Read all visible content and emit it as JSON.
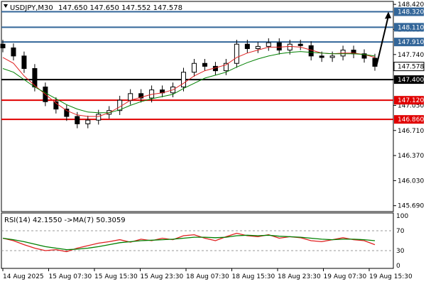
{
  "header": {
    "symbol_tf": "USDJPY,M30",
    "ohlc": "147.650 147.650 147.552 147.578",
    "rsi_label": "RSI(14) 42.1550 ->MA(7) 50.3059"
  },
  "chart_data": {
    "type": "line",
    "title": "",
    "xlabel": "",
    "ylabel": "",
    "price_axis": {
      "ylim": [
        145.61,
        148.46
      ],
      "ticks": [
        "148.420",
        "148.080",
        "147.740",
        "147.400",
        "147.050",
        "146.710",
        "146.370",
        "146.030",
        "145.690"
      ]
    },
    "time_axis": {
      "ticks": [
        "14 Aug 2025",
        "15 Aug 07:30",
        "15 Aug 15:30",
        "15 Aug 23:30",
        "18 Aug 07:30",
        "18 Aug 15:30",
        "18 Aug 23:30",
        "19 Aug 07:30",
        "19 Aug 15:30"
      ]
    },
    "levels": [
      {
        "value": "148.320",
        "color": "#336699"
      },
      {
        "value": "148.110",
        "color": "#336699"
      },
      {
        "value": "147.910",
        "color": "#336699"
      },
      {
        "value": "147.400",
        "color": "#000000"
      },
      {
        "value": "147.120",
        "color": "#e00000"
      },
      {
        "value": "146.860",
        "color": "#e00000"
      }
    ],
    "current_price": "147.578",
    "projection": {
      "from": 147.578,
      "to": 148.32
    },
    "price_series": [
      {
        "name": "close",
        "values": [
          147.83,
          147.72,
          147.55,
          147.3,
          147.1,
          147.0,
          146.9,
          146.8,
          146.85,
          146.93,
          146.98,
          147.12,
          147.21,
          147.15,
          147.26,
          147.22,
          147.3,
          147.5,
          147.62,
          147.58,
          147.52,
          147.62,
          147.88,
          147.82,
          147.85,
          147.9,
          147.8,
          147.88,
          147.86,
          147.72,
          147.7,
          147.72,
          147.8,
          147.75,
          147.69,
          147.58
        ]
      },
      {
        "name": "",
        "color": "#e02020",
        "values": [
          147.7,
          147.62,
          147.45,
          147.32,
          147.2,
          147.08,
          146.98,
          146.92,
          146.9,
          146.9,
          146.95,
          147.03,
          147.12,
          147.16,
          147.2,
          147.22,
          147.26,
          147.35,
          147.45,
          147.52,
          147.56,
          147.6,
          147.7,
          147.76,
          147.8,
          147.84,
          147.84,
          147.85,
          147.84,
          147.8,
          147.76,
          147.75,
          147.76,
          147.76,
          147.74,
          147.7
        ]
      },
      {
        "name": "",
        "color": "#008000",
        "values": [
          147.55,
          147.5,
          147.4,
          147.3,
          147.22,
          147.14,
          147.06,
          147.0,
          146.96,
          146.95,
          146.95,
          146.99,
          147.05,
          147.1,
          147.14,
          147.17,
          147.2,
          147.28,
          147.35,
          147.42,
          147.46,
          147.5,
          147.57,
          147.63,
          147.68,
          147.72,
          147.75,
          147.77,
          147.78,
          147.77,
          147.76,
          147.75,
          147.75,
          147.75,
          147.74,
          147.72
        ]
      }
    ],
    "rsi": {
      "levels": [
        70,
        30
      ],
      "ticks": [
        "100",
        "70",
        "30",
        "0"
      ],
      "series": [
        {
          "name": "",
          "color": "#e02020",
          "values": [
            55,
            50,
            42,
            35,
            30,
            32,
            28,
            35,
            40,
            45,
            48,
            52,
            47,
            53,
            50,
            55,
            52,
            60,
            62,
            55,
            50,
            58,
            65,
            60,
            58,
            62,
            55,
            58,
            56,
            50,
            48,
            52,
            56,
            52,
            50,
            42
          ]
        },
        {
          "name": "",
          "color": "#008000",
          "values": [
            55,
            52,
            48,
            43,
            38,
            35,
            32,
            33,
            35,
            38,
            42,
            46,
            48,
            50,
            51,
            52,
            53,
            55,
            57,
            57,
            56,
            57,
            60,
            61,
            60,
            61,
            59,
            58,
            57,
            55,
            53,
            52,
            53,
            53,
            52,
            50
          ]
        }
      ]
    }
  }
}
